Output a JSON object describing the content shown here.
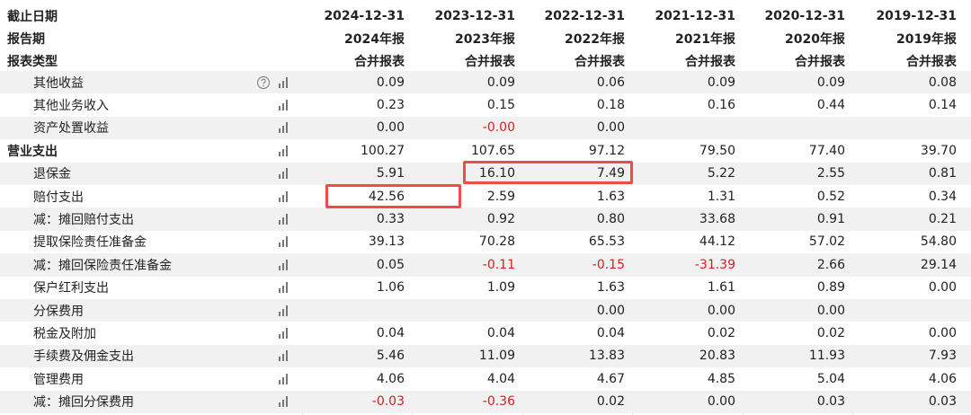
{
  "table": {
    "header": [
      [
        "截止日期",
        "2024-12-31",
        "2023-12-31",
        "2022-12-31",
        "2021-12-31",
        "2020-12-31",
        "2019-12-31"
      ],
      [
        "报告期",
        "2024年报",
        "2023年报",
        "2022年报",
        "2021年报",
        "2020年报",
        "2019年报"
      ],
      [
        "报表类型",
        "合并报表",
        "合并报表",
        "合并报表",
        "合并报表",
        "合并报表",
        "合并报表"
      ]
    ],
    "rows": [
      {
        "label": "其他收益",
        "values": [
          "0.09",
          "0.09",
          "0.06",
          "0.09",
          "0.09",
          "0.08"
        ]
      },
      {
        "label": "其他业务收入",
        "values": [
          "0.23",
          "0.15",
          "0.18",
          "0.16",
          "0.44",
          "0.14"
        ]
      },
      {
        "label": "资产处置收益",
        "values": [
          "0.00",
          "-0.00",
          "0.00",
          null,
          null,
          null
        ]
      },
      {
        "label": "营业支出",
        "bold": true,
        "values": [
          "100.27",
          "107.65",
          "97.12",
          "79.50",
          "77.40",
          "39.70"
        ]
      },
      {
        "label": "退保金",
        "values": [
          "5.91",
          "16.10",
          "7.49",
          "5.22",
          "2.55",
          "0.81"
        ]
      },
      {
        "label": "赔付支出",
        "values": [
          "42.56",
          "2.59",
          "1.63",
          "1.31",
          "0.52",
          "0.34"
        ]
      },
      {
        "label": "减：摊回赔付支出",
        "values": [
          "0.33",
          "0.92",
          "0.80",
          "33.68",
          "0.91",
          "0.21"
        ]
      },
      {
        "label": "提取保险责任准备金",
        "values": [
          "39.13",
          "70.28",
          "65.53",
          "44.12",
          "57.02",
          "54.80"
        ]
      },
      {
        "label": "减：摊回保险责任准备金",
        "values": [
          "0.05",
          "-0.11",
          "-0.15",
          "-31.39",
          "2.66",
          "29.14"
        ]
      },
      {
        "label": "保户红利支出",
        "values": [
          "1.06",
          "1.09",
          "1.63",
          "1.61",
          "0.89",
          "0.00"
        ]
      },
      {
        "label": "分保费用",
        "values": [
          null,
          null,
          "0.00",
          "0.00",
          "0.00",
          null
        ]
      },
      {
        "label": "税金及附加",
        "values": [
          "0.04",
          "0.04",
          "0.04",
          "0.02",
          "0.02",
          "0.00"
        ]
      },
      {
        "label": "手续费及佣金支出",
        "values": [
          "5.46",
          "11.09",
          "13.83",
          "20.83",
          "11.93",
          "7.93"
        ]
      },
      {
        "label": "管理费用",
        "values": [
          "4.06",
          "4.04",
          "4.67",
          "4.85",
          "5.04",
          "4.06"
        ]
      },
      {
        "label": "减：摊回分保费用",
        "values": [
          "-0.03",
          "-0.36",
          "0.02",
          "0.00",
          "0.03",
          "0.03"
        ]
      }
    ]
  }
}
